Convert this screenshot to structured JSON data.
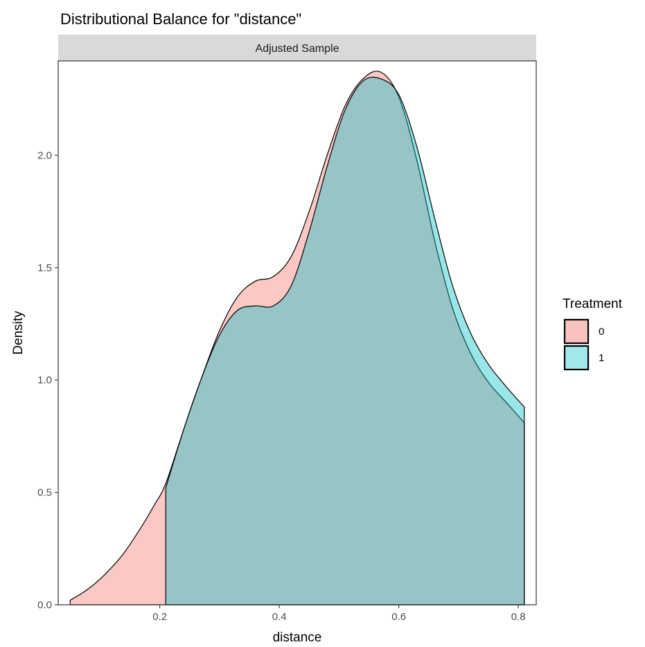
{
  "chart_data": {
    "type": "area",
    "title": "Distributional Balance for \"distance\"",
    "facet_label": "Adjusted Sample",
    "xlabel": "distance",
    "ylabel": "Density",
    "xlim": [
      0.03,
      0.83
    ],
    "ylim": [
      0.0,
      2.42
    ],
    "x_ticks": [
      0.2,
      0.4,
      0.6,
      0.8
    ],
    "x_tick_labels": [
      "0.2",
      "0.4",
      "0.6",
      "0.8"
    ],
    "y_ticks": [
      0.0,
      0.5,
      1.0,
      1.5,
      2.0
    ],
    "y_tick_labels": [
      "0.0",
      "0.5",
      "1.0",
      "1.5",
      "2.0"
    ],
    "grid": false,
    "legend": {
      "title": "Treatment",
      "position": "right"
    },
    "series": [
      {
        "name": "0",
        "color": "#F8766D",
        "fill": "#f8c3bf",
        "x": [
          0.05,
          0.08,
          0.11,
          0.14,
          0.17,
          0.19,
          0.21,
          0.24,
          0.27,
          0.3,
          0.33,
          0.36,
          0.39,
          0.42,
          0.45,
          0.48,
          0.51,
          0.54,
          0.57,
          0.6,
          0.63,
          0.66,
          0.69,
          0.72,
          0.75,
          0.78,
          0.81
        ],
        "values": [
          0.02,
          0.07,
          0.14,
          0.23,
          0.35,
          0.44,
          0.54,
          0.78,
          1.01,
          1.22,
          1.37,
          1.44,
          1.46,
          1.55,
          1.75,
          2.0,
          2.22,
          2.34,
          2.37,
          2.26,
          1.98,
          1.62,
          1.32,
          1.12,
          0.99,
          0.9,
          0.81
        ]
      },
      {
        "name": "1",
        "color": "#00BFC4",
        "fill": "#a0e8ea",
        "x": [
          0.21,
          0.24,
          0.27,
          0.3,
          0.33,
          0.36,
          0.39,
          0.42,
          0.45,
          0.48,
          0.51,
          0.54,
          0.57,
          0.6,
          0.63,
          0.66,
          0.69,
          0.72,
          0.75,
          0.78,
          0.81
        ],
        "values": [
          0.52,
          0.78,
          1.01,
          1.2,
          1.31,
          1.33,
          1.33,
          1.42,
          1.66,
          1.95,
          2.2,
          2.33,
          2.34,
          2.27,
          2.04,
          1.72,
          1.42,
          1.21,
          1.07,
          0.97,
          0.88
        ]
      }
    ]
  }
}
